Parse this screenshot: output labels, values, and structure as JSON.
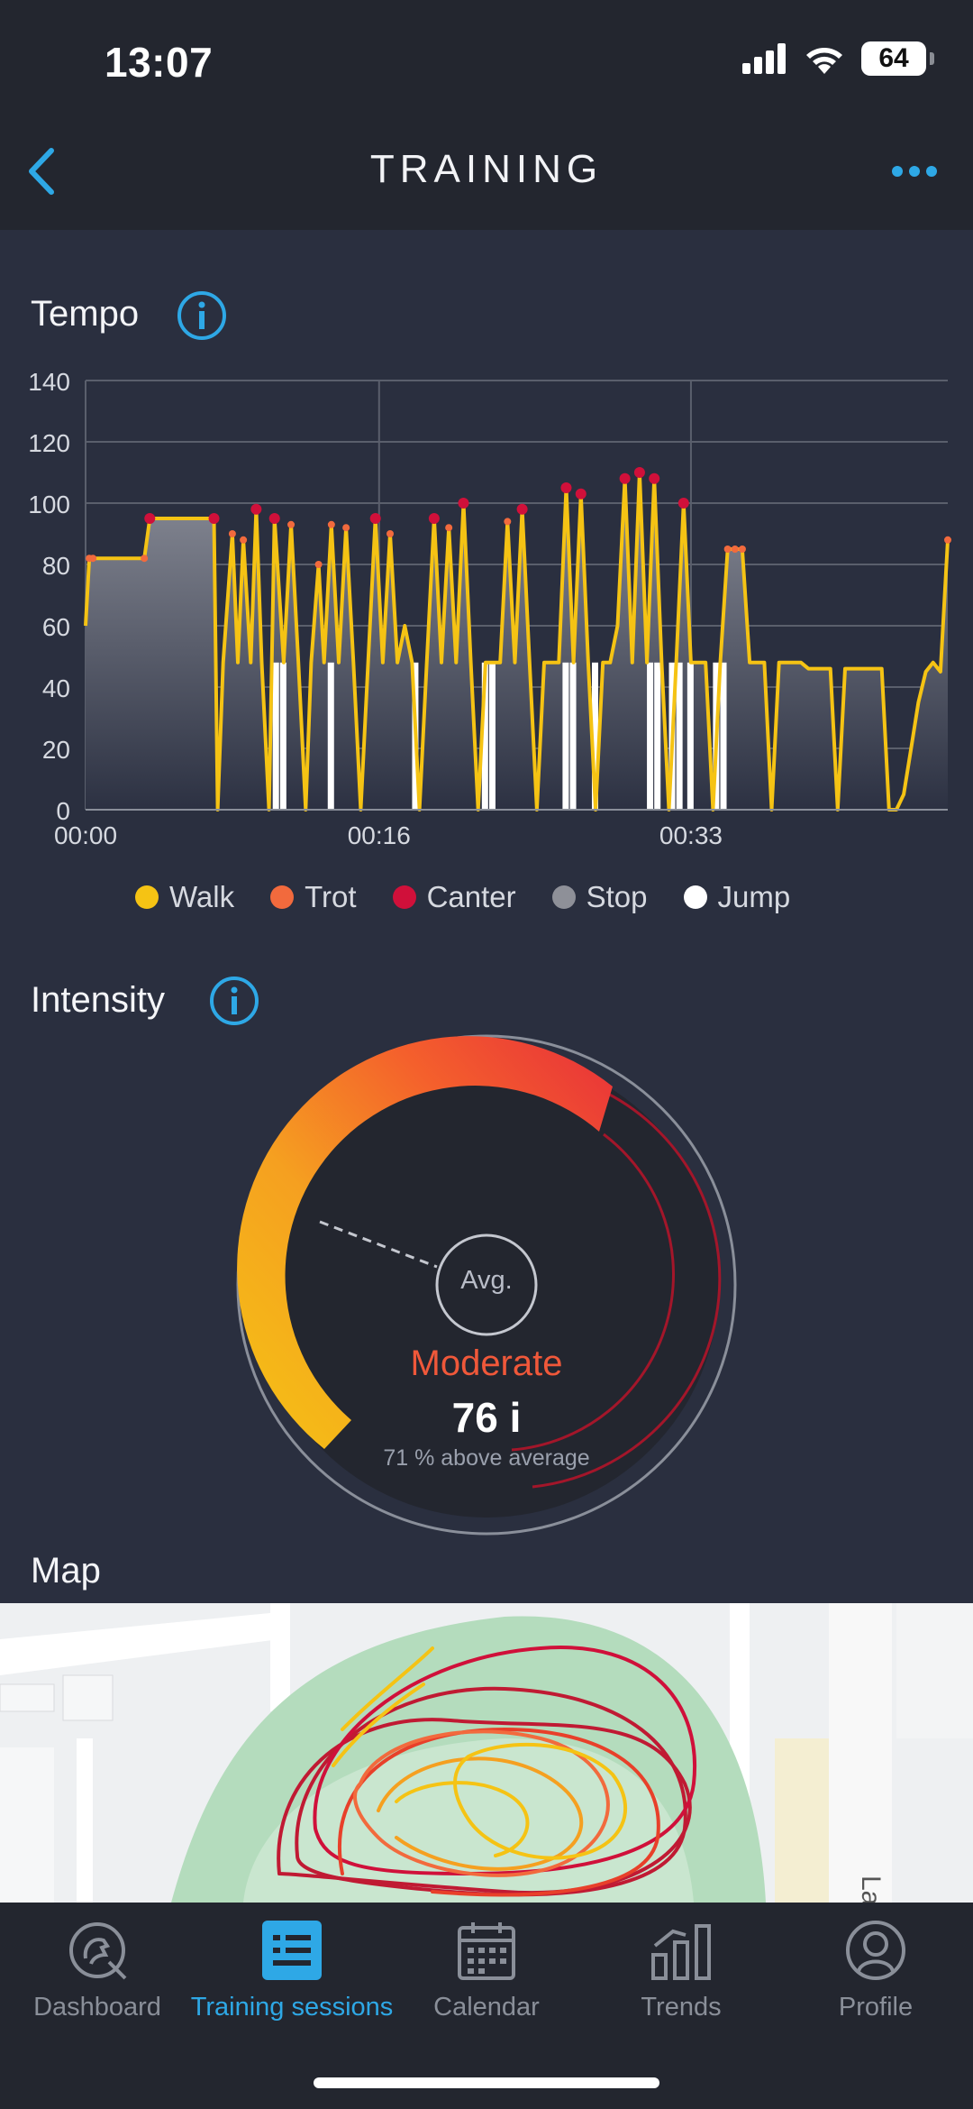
{
  "status_bar": {
    "time": "13:07",
    "battery": "64"
  },
  "header": {
    "title": "TRAINING"
  },
  "tempo": {
    "title": "Tempo"
  },
  "chart_data": {
    "type": "area",
    "title": "Tempo",
    "x_ticks": [
      "00:00",
      "00:16",
      "00:33"
    ],
    "y_ticks": [
      0,
      20,
      40,
      60,
      80,
      100,
      120,
      140
    ],
    "ylim": [
      0,
      140
    ],
    "xlim_seconds": [
      0,
      47
    ],
    "grid": true,
    "legend_position": "bottom",
    "series": [
      {
        "name": "Tempo",
        "color": "#f1c40f",
        "x_seconds": [
          0,
          0.2,
          0.4,
          3.2,
          3.5,
          7.0,
          7.2,
          7.5,
          8.0,
          8.3,
          8.6,
          9.0,
          9.3,
          9.6,
          10.0,
          10.3,
          10.8,
          11.2,
          11.6,
          12.0,
          12.3,
          12.7,
          13.0,
          13.4,
          13.8,
          14.2,
          14.6,
          15.0,
          15.4,
          15.8,
          16.2,
          16.6,
          17.0,
          17.4,
          17.8,
          18.2,
          18.6,
          19.0,
          19.4,
          19.8,
          20.2,
          20.6,
          21.0,
          21.4,
          21.8,
          22.2,
          22.6,
          23.0,
          23.4,
          23.8,
          24.2,
          24.6,
          25.0,
          25.4,
          25.8,
          26.2,
          26.6,
          27.0,
          27.4,
          27.8,
          28.2,
          28.6,
          29.0,
          29.4,
          29.8,
          30.2,
          30.6,
          31.0,
          31.4,
          31.8,
          32.2,
          32.6,
          33.0,
          33.4,
          33.8,
          34.2,
          34.6,
          35.0,
          35.4,
          35.8,
          36.2,
          36.6,
          37.0,
          37.4,
          37.8,
          38.2,
          38.6,
          39.0,
          39.4,
          39.8,
          40.2,
          40.6,
          41.0,
          41.4,
          41.8,
          42.2,
          42.6,
          43.0,
          43.4,
          43.8,
          44.2,
          44.6,
          45.0,
          45.4,
          45.8,
          46.2,
          46.6,
          47.0
        ],
        "values": [
          60,
          82,
          82,
          82,
          95,
          95,
          0,
          48,
          90,
          48,
          88,
          48,
          98,
          48,
          0,
          95,
          48,
          93,
          48,
          0,
          48,
          80,
          48,
          93,
          48,
          92,
          48,
          0,
          48,
          95,
          48,
          90,
          48,
          60,
          48,
          0,
          48,
          95,
          48,
          92,
          48,
          100,
          48,
          0,
          48,
          48,
          48,
          94,
          48,
          98,
          48,
          0,
          48,
          48,
          48,
          105,
          48,
          103,
          48,
          0,
          48,
          48,
          60,
          108,
          48,
          110,
          48,
          108,
          48,
          0,
          48,
          100,
          48,
          48,
          48,
          0,
          48,
          85,
          85,
          85,
          48,
          48,
          48,
          0,
          48,
          48,
          48,
          48,
          46,
          46,
          46,
          46,
          0,
          46,
          46,
          46,
          46,
          46,
          46,
          0,
          0,
          5,
          20,
          35,
          45,
          48,
          45,
          88
        ]
      }
    ],
    "legend": [
      {
        "name": "Walk",
        "color": "#f5c314"
      },
      {
        "name": "Trot",
        "color": "#f26a3d"
      },
      {
        "name": "Canter",
        "color": "#d0103a"
      },
      {
        "name": "Stop",
        "color": "#8e9098"
      },
      {
        "name": "Jump",
        "color": "#ffffff"
      }
    ]
  },
  "intensity": {
    "title": "Intensity",
    "avg_label": "Avg.",
    "level": "Moderate",
    "value": "76 i",
    "compare": "71 % above average",
    "level_fraction": 0.76
  },
  "map": {
    "title": "Map",
    "street_label": "La"
  },
  "tabs": [
    {
      "label": "Dashboard",
      "icon": "dashboard-icon",
      "active": false
    },
    {
      "label": "Training sessions",
      "icon": "training-sessions-icon",
      "active": true
    },
    {
      "label": "Calendar",
      "icon": "calendar-icon",
      "active": false
    },
    {
      "label": "Trends",
      "icon": "trends-icon",
      "active": false
    },
    {
      "label": "Profile",
      "icon": "profile-icon",
      "active": false
    }
  ],
  "colors": {
    "accent": "#2ea8e6",
    "background": "#2a2f3f",
    "bar": "#23262f"
  }
}
